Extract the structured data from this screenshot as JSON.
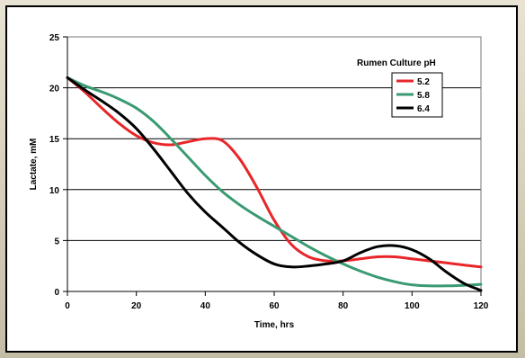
{
  "chart_data": {
    "type": "line",
    "title": "",
    "xlabel": "Time, hrs",
    "ylabel": "Lactate, mM",
    "xlim": [
      0,
      120
    ],
    "ylim": [
      0,
      25
    ],
    "xticks": [
      0,
      20,
      40,
      60,
      80,
      100,
      120
    ],
    "yticks": [
      0,
      5,
      10,
      15,
      20,
      25
    ],
    "grid": "horizontal",
    "legend": {
      "title": "Rumen Culture pH",
      "placement": "top-right"
    },
    "series": [
      {
        "name": "5.2",
        "color": "#e8262a",
        "x": [
          0,
          5,
          10,
          15,
          20,
          25,
          30,
          35,
          40,
          45,
          50,
          55,
          60,
          65,
          70,
          75,
          80,
          85,
          90,
          95,
          100,
          105,
          110,
          115,
          120
        ],
        "y": [
          21.0,
          19.6,
          18.0,
          16.5,
          15.3,
          14.6,
          14.4,
          14.7,
          15.0,
          14.8,
          13.0,
          10.2,
          7.0,
          4.6,
          3.4,
          3.0,
          3.0,
          3.2,
          3.4,
          3.4,
          3.2,
          3.0,
          2.8,
          2.6,
          2.4
        ]
      },
      {
        "name": "5.8",
        "color": "#3a9a72",
        "x": [
          0,
          5,
          10,
          15,
          20,
          25,
          30,
          35,
          40,
          45,
          50,
          55,
          60,
          65,
          70,
          75,
          80,
          85,
          90,
          95,
          100,
          105,
          110,
          115,
          120
        ],
        "y": [
          21.0,
          20.2,
          19.6,
          18.9,
          18.0,
          16.7,
          15.0,
          13.2,
          11.4,
          9.8,
          8.5,
          7.4,
          6.4,
          5.4,
          4.4,
          3.5,
          2.7,
          2.0,
          1.4,
          0.95,
          0.65,
          0.55,
          0.55,
          0.6,
          0.7
        ]
      },
      {
        "name": "6.4",
        "color": "#000000",
        "x": [
          0,
          5,
          10,
          15,
          20,
          25,
          30,
          35,
          40,
          45,
          50,
          55,
          60,
          65,
          70,
          75,
          80,
          85,
          90,
          95,
          100,
          105,
          110,
          115,
          120
        ],
        "y": [
          21.0,
          19.8,
          18.7,
          17.5,
          16.0,
          14.0,
          11.8,
          9.6,
          7.8,
          6.3,
          4.8,
          3.6,
          2.7,
          2.4,
          2.5,
          2.7,
          3.0,
          3.8,
          4.4,
          4.5,
          4.1,
          3.2,
          1.9,
          0.8,
          0.1
        ]
      }
    ]
  }
}
